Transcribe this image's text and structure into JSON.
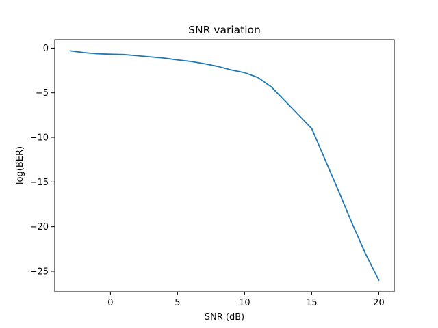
{
  "chart_data": {
    "type": "line",
    "title": "SNR variation",
    "xlabel": "SNR (dB)",
    "ylabel": "log(BER)",
    "xlim": [
      -4.15,
      21.15
    ],
    "ylim": [
      -27.3,
      0.95
    ],
    "xticks": [
      0,
      5,
      10,
      15,
      20
    ],
    "yticks": [
      0,
      -5,
      -10,
      -15,
      -20,
      -25
    ],
    "xtick_labels": [
      "0",
      "5",
      "10",
      "15",
      "20"
    ],
    "ytick_labels": [
      "0",
      "−5",
      "−10",
      "−15",
      "−20",
      "−25"
    ],
    "grid": false,
    "series": [
      {
        "color": "#1f77b4",
        "x": [
          -3,
          -2,
          -1,
          0,
          1,
          2,
          3,
          4,
          5,
          6,
          7,
          8,
          9,
          10,
          11,
          12,
          13,
          14,
          15,
          16,
          17,
          18,
          19,
          20
        ],
        "y": [
          -0.3,
          -0.5,
          -0.63,
          -0.68,
          -0.72,
          -0.85,
          -0.98,
          -1.12,
          -1.33,
          -1.5,
          -1.75,
          -2.05,
          -2.45,
          -2.75,
          -3.3,
          -4.35,
          -5.9,
          -7.45,
          -9.0,
          -12.5,
          -16.0,
          -19.6,
          -23.0,
          -26.0
        ]
      }
    ]
  }
}
